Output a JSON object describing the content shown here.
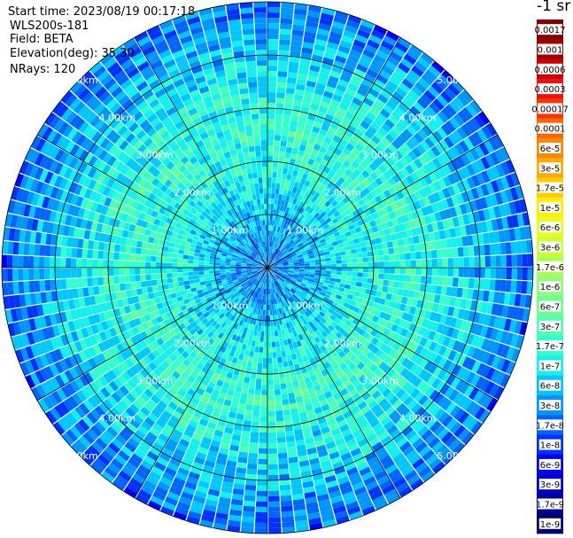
{
  "header": {
    "start_time": "Start time: 2023/08/19 00:17:18",
    "instrument": "WLS200s-181",
    "field": "Field: BETA",
    "elevation": "Elevation(deg): 35.30",
    "nrays": "NRays: 120"
  },
  "colorbar": {
    "title": "-1 sr",
    "labels": [
      "0.0017",
      "0.001",
      "0.0006",
      "0.0003",
      "0.00017",
      "0.0001",
      "6e-5",
      "3e-5",
      "1.7e-5",
      "1e-5",
      "6e-6",
      "3e-6",
      "1.7e-6",
      "1e-6",
      "6e-7",
      "3e-7",
      "1.7e-7",
      "1e-7",
      "6e-8",
      "3e-8",
      "1.7e-8",
      "1e-8",
      "6e-9",
      "3e-9",
      "1.7e-9",
      "1e-9"
    ],
    "colors": [
      "#800000",
      "#a00000",
      "#cc0000",
      "#ee1111",
      "#ff3300",
      "#ff6600",
      "#ff8800",
      "#ffaa00",
      "#ffcc00",
      "#ffee00",
      "#e6ff1a",
      "#c8ff37",
      "#aaff55",
      "#8cff73",
      "#6eff91",
      "#50ffaf",
      "#32ffcd",
      "#14f0eb",
      "#00c8ff",
      "#0096ff",
      "#0064ff",
      "#0032ff",
      "#0000f5",
      "#0000c8",
      "#00009b",
      "#000070"
    ]
  },
  "chart_data": {
    "type": "ppi",
    "title": "",
    "nrays": 120,
    "range_rings_km": [
      1.0,
      2.0,
      3.0,
      4.0,
      5.0
    ],
    "ring_labels": [
      "1.00km",
      "2.00km",
      "3.00km",
      "4.00km",
      "5.00km"
    ],
    "radial_lines_deg": [
      0,
      30,
      60,
      90,
      120,
      150,
      180,
      210,
      240,
      270,
      300,
      330
    ],
    "grid": true,
    "value_field": "BETA",
    "value_units": "sr^-1",
    "log_value_range": [
      1e-09,
      0.0017
    ],
    "dominant_value_by_range_km": [
      {
        "range_km": 0.5,
        "value": 3e-08
      },
      {
        "range_km": 1.5,
        "value": 1e-07
      },
      {
        "range_km": 2.5,
        "value": 1.7e-07
      },
      {
        "range_km": 3.5,
        "value": 1e-07
      },
      {
        "range_km": 4.5,
        "value": 3e-08
      },
      {
        "range_km": 5.0,
        "value": 1.7e-08
      }
    ]
  }
}
